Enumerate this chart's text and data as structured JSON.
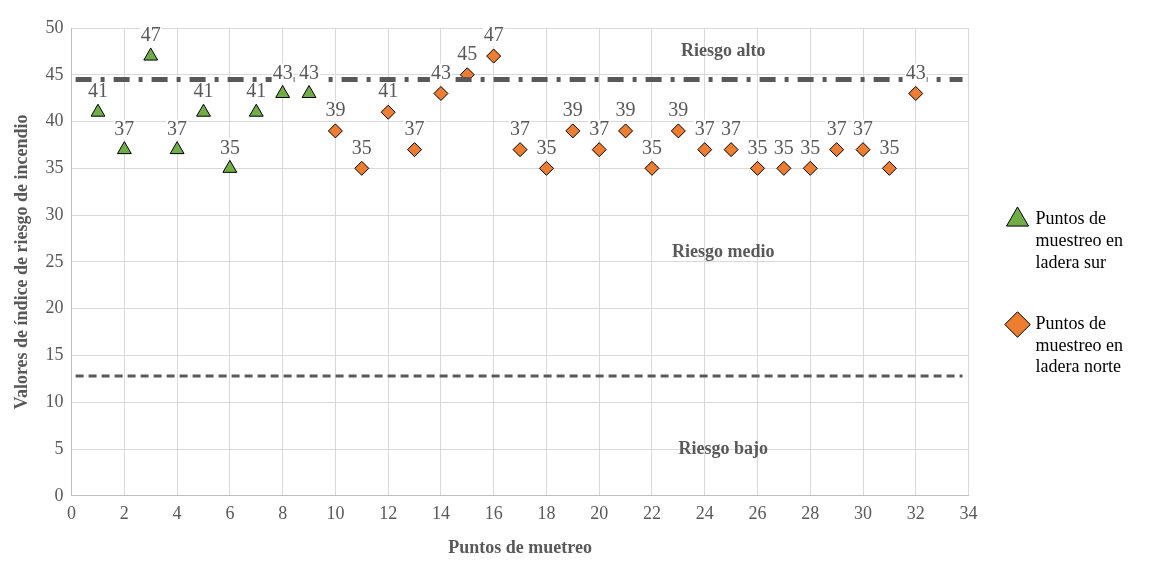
{
  "chart_data": {
    "type": "scatter",
    "xlabel": "Puntos de muetreo",
    "ylabel": "Valores de índice de riesgo de incendio",
    "xlim": [
      0,
      34
    ],
    "xticks": [
      0,
      2,
      4,
      6,
      8,
      10,
      12,
      14,
      16,
      18,
      20,
      22,
      24,
      26,
      28,
      30,
      32,
      34
    ],
    "ylim": [
      0,
      50
    ],
    "yticks": [
      0,
      5,
      10,
      15,
      20,
      25,
      30,
      35,
      40,
      45,
      50
    ],
    "grid": true,
    "legend": "right",
    "data_labels": true,
    "series": [
      {
        "name": "Puntos de muestreo en ladera sur",
        "color": "#70ad47",
        "marker": "triangle",
        "x": [
          1,
          2,
          3,
          4,
          5,
          6,
          7,
          8,
          9
        ],
        "values": [
          41,
          37,
          47,
          37,
          41,
          35,
          41,
          43,
          43
        ]
      },
      {
        "name": "Puntos de muestreo en ladera norte",
        "color": "#ed7d31",
        "marker": "diamond",
        "x": [
          10,
          11,
          12,
          13,
          14,
          15,
          16,
          17,
          18,
          19,
          20,
          21,
          22,
          23,
          24,
          25,
          26,
          27,
          28,
          29,
          30,
          31,
          32
        ],
        "values": [
          39,
          35,
          41,
          37,
          43,
          45,
          47,
          37,
          35,
          39,
          37,
          39,
          35,
          39,
          37,
          37,
          35,
          35,
          35,
          37,
          37,
          35,
          43
        ]
      }
    ],
    "ref_lines": [
      {
        "axis": "y",
        "value": 44.5,
        "color": "#595959",
        "line_style": "dashdot"
      },
      {
        "axis": "y",
        "value": 12.8,
        "color": "#595959",
        "line_style": "dashed"
      }
    ],
    "annotations": [
      "Riesgo alto",
      "Riesgo medio",
      "Riesgo bajo"
    ]
  }
}
